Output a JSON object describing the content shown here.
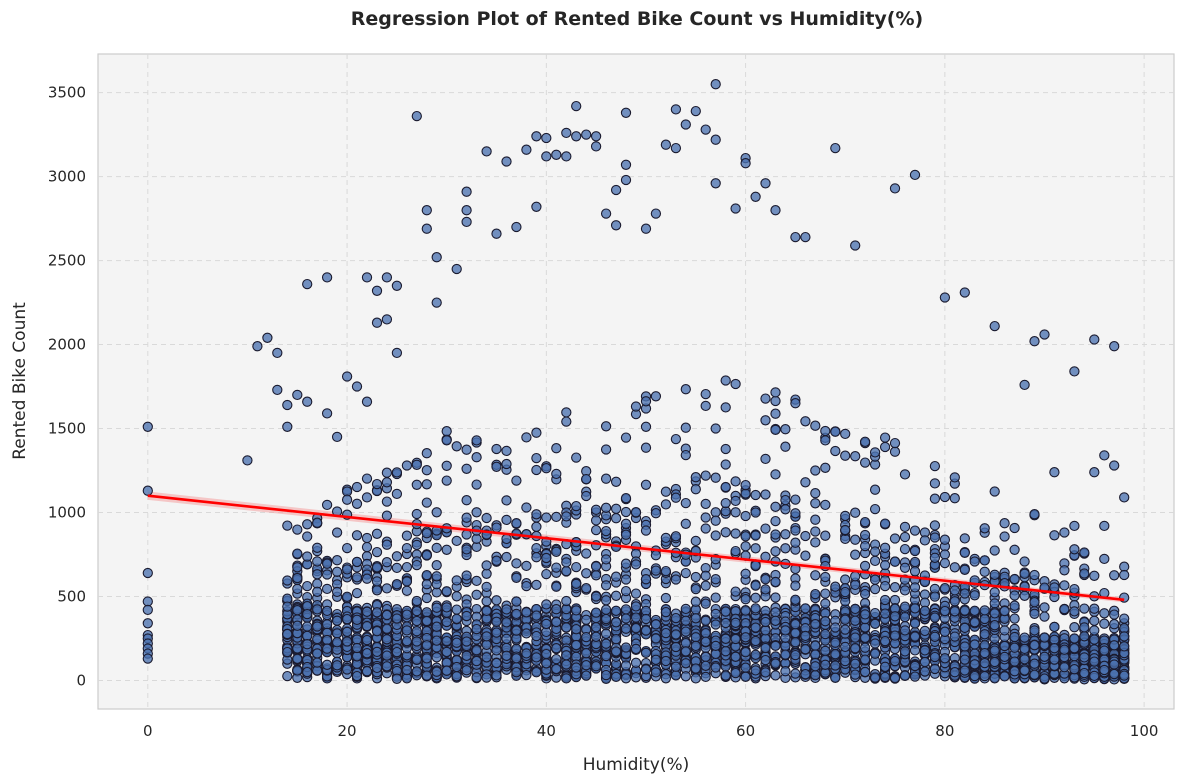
{
  "chart_data": {
    "type": "scatter",
    "title": "Regression Plot of Rented Bike Count vs Humidity(%)",
    "xlabel": "Humidity(%)",
    "ylabel": "Rented Bike Count",
    "xlim": [
      -5,
      103
    ],
    "ylim": [
      -170,
      3730
    ],
    "xticks": [
      0,
      20,
      40,
      60,
      80,
      100
    ],
    "yticks": [
      0,
      500,
      1000,
      1500,
      2000,
      2500,
      3000,
      3500
    ],
    "grid": true,
    "legend": "none",
    "colors": {
      "points_fill": "#4c72b0",
      "points_edge": "#1a1a2e",
      "regression_line": "#ff0000",
      "confidence_band": "#f4a6a6",
      "background": "#f4f4f4"
    },
    "regression": {
      "x_start": 0,
      "y_start": 1100,
      "x_end": 98,
      "y_end": 480,
      "ci_halfwidth_start": 25,
      "ci_halfwidth_end": 15
    },
    "points_note_count": 8760,
    "points": [
      [
        0,
        1510
      ],
      [
        0,
        1130
      ],
      [
        0,
        640
      ],
      [
        0,
        470
      ],
      [
        0,
        420
      ],
      [
        0,
        340
      ],
      [
        0,
        270
      ],
      [
        0,
        250
      ],
      [
        0,
        220
      ],
      [
        0,
        190
      ],
      [
        0,
        160
      ],
      [
        0,
        130
      ],
      [
        10,
        1310
      ],
      [
        11,
        1990
      ],
      [
        12,
        2040
      ],
      [
        13,
        1950
      ],
      [
        13,
        1730
      ],
      [
        14,
        1640
      ],
      [
        14,
        1510
      ],
      [
        15,
        1700
      ],
      [
        16,
        1660
      ],
      [
        16,
        2360
      ],
      [
        18,
        2400
      ],
      [
        18,
        1590
      ],
      [
        19,
        1450
      ],
      [
        20,
        1810
      ],
      [
        21,
        1750
      ],
      [
        22,
        2400
      ],
      [
        22,
        1660
      ],
      [
        23,
        2320
      ],
      [
        23,
        2130
      ],
      [
        24,
        2400
      ],
      [
        24,
        2150
      ],
      [
        25,
        2350
      ],
      [
        25,
        1950
      ],
      [
        27,
        3360
      ],
      [
        28,
        2800
      ],
      [
        28,
        2690
      ],
      [
        29,
        2520
      ],
      [
        29,
        2250
      ],
      [
        31,
        2450
      ],
      [
        32,
        2910
      ],
      [
        32,
        2800
      ],
      [
        32,
        2730
      ],
      [
        34,
        3150
      ],
      [
        35,
        2660
      ],
      [
        36,
        3090
      ],
      [
        37,
        2700
      ],
      [
        38,
        3160
      ],
      [
        39,
        3240
      ],
      [
        39,
        2820
      ],
      [
        40,
        3230
      ],
      [
        40,
        3120
      ],
      [
        41,
        3130
      ],
      [
        42,
        3120
      ],
      [
        42,
        3260
      ],
      [
        43,
        3420
      ],
      [
        43,
        3240
      ],
      [
        44,
        3250
      ],
      [
        45,
        3240
      ],
      [
        45,
        3180
      ],
      [
        46,
        2780
      ],
      [
        47,
        2920
      ],
      [
        47,
        2710
      ],
      [
        48,
        3380
      ],
      [
        48,
        3070
      ],
      [
        48,
        2980
      ],
      [
        50,
        2690
      ],
      [
        51,
        2780
      ],
      [
        52,
        3190
      ],
      [
        53,
        3400
      ],
      [
        53,
        3170
      ],
      [
        54,
        3310
      ],
      [
        55,
        3390
      ],
      [
        56,
        3280
      ],
      [
        57,
        3550
      ],
      [
        57,
        3220
      ],
      [
        57,
        2960
      ],
      [
        59,
        2810
      ],
      [
        60,
        3110
      ],
      [
        60,
        3080
      ],
      [
        61,
        2880
      ],
      [
        62,
        2960
      ],
      [
        63,
        2800
      ],
      [
        65,
        2640
      ],
      [
        66,
        2640
      ],
      [
        69,
        3170
      ],
      [
        71,
        2590
      ],
      [
        75,
        2930
      ],
      [
        77,
        3010
      ],
      [
        80,
        2280
      ],
      [
        82,
        2310
      ],
      [
        85,
        2110
      ],
      [
        89,
        2020
      ],
      [
        90,
        2060
      ],
      [
        88,
        1760
      ],
      [
        93,
        1840
      ],
      [
        95,
        2030
      ],
      [
        97,
        1990
      ],
      [
        91,
        1240
      ],
      [
        95,
        1240
      ],
      [
        96,
        1340
      ],
      [
        97,
        1280
      ],
      [
        98,
        1090
      ],
      [
        96,
        920
      ],
      [
        93,
        920
      ],
      [
        89,
        990
      ]
    ]
  }
}
